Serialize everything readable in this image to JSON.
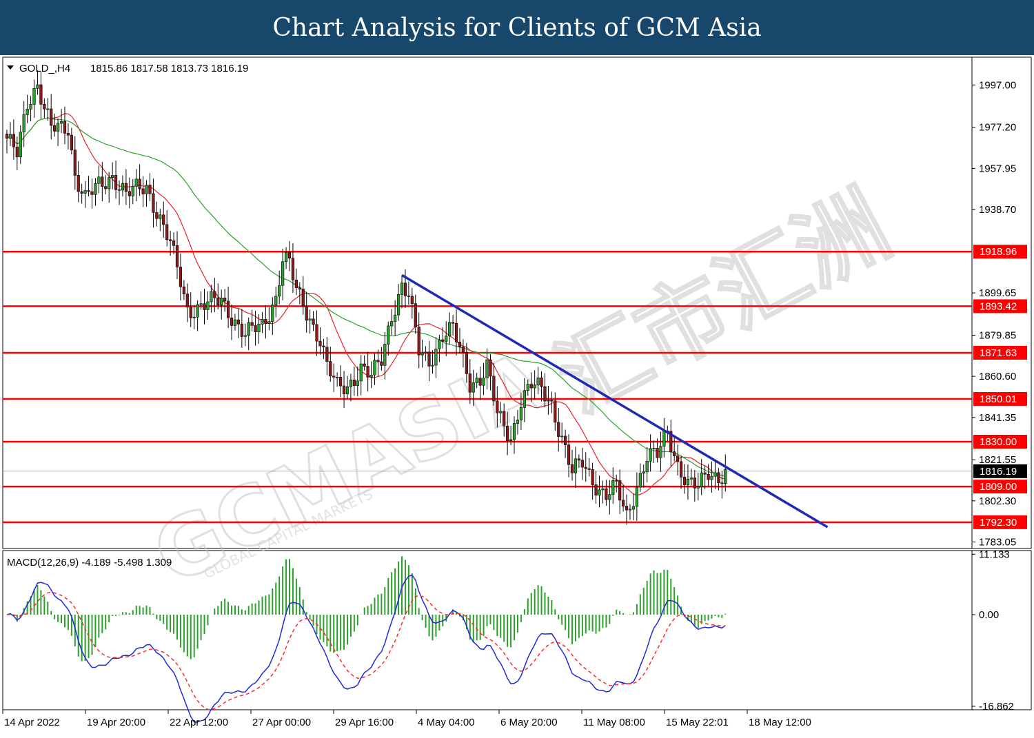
{
  "banner": {
    "title": "Chart Analysis for Clients of GCM Asia"
  },
  "header": {
    "symbol": "GOLD_,H4",
    "ohlc": "1815.86 1817.58 1813.73 1816.19"
  },
  "macd_header": {
    "label": "MACD(12,26,9) -4.189 -5.498 1.309"
  },
  "watermark": {
    "brand": "GCMASIA",
    "tagline": "GLOBAL CAPITAL MARKETS",
    "chinese": "汇市汇洲"
  },
  "chart_data": [
    {
      "type": "candlestick",
      "symbol": "GOLD_",
      "timeframe": "H4",
      "ylim": [
        1780,
        2010
      ],
      "y_ticks": [
        "1997.00",
        "1977.20",
        "1957.95",
        "1938.70",
        "1918.96",
        "1899.65",
        "1893.42",
        "1879.85",
        "1871.63",
        "1860.60",
        "1850.01",
        "1841.35",
        "1830.00",
        "1821.55",
        "1816.19",
        "1809.00",
        "1802.30",
        "1792.30",
        "1783.05"
      ],
      "x_labels": [
        "14 Apr 2022",
        "19 Apr 20:00",
        "22 Apr 12:00",
        "27 Apr 00:00",
        "29 Apr 16:00",
        "4 May 04:00",
        "6 May 20:00",
        "11 May 08:00",
        "15 May 22:01",
        "18 May 12:00"
      ],
      "current_price": 1816.19,
      "horizontal_levels": [
        1918.96,
        1893.42,
        1871.63,
        1850.01,
        1830.0,
        1809.0,
        1792.3
      ],
      "trendline": {
        "start_index": 116,
        "start_value": 1908,
        "end_index": 241,
        "end_value": 1790
      },
      "ma_fast_color": "#e8202a",
      "ma_slow_color": "#2ca02c",
      "candle_up_color": "#2ca02c",
      "candle_down_color": "#8b1a1a",
      "level_color": "#ff0000",
      "trend_color": "#1f2ab4",
      "close_path": [
        [
          0,
          1970
        ],
        [
          3,
          1965
        ],
        [
          6,
          1990
        ],
        [
          9,
          1997
        ],
        [
          11,
          1985
        ],
        [
          13,
          1976
        ],
        [
          18,
          1978
        ],
        [
          20,
          1955
        ],
        [
          23,
          1943
        ],
        [
          27,
          1950
        ],
        [
          31,
          1955
        ],
        [
          35,
          1945
        ],
        [
          38,
          1948
        ],
        [
          41,
          1950
        ],
        [
          44,
          1938
        ],
        [
          48,
          1922
        ],
        [
          51,
          1905
        ],
        [
          53,
          1892
        ],
        [
          58,
          1894
        ],
        [
          63,
          1896
        ],
        [
          67,
          1887
        ],
        [
          70,
          1880
        ],
        [
          75,
          1884
        ],
        [
          79,
          1898
        ],
        [
          81,
          1916
        ],
        [
          83,
          1913
        ],
        [
          85,
          1900
        ],
        [
          89,
          1888
        ],
        [
          92,
          1878
        ],
        [
          94,
          1865
        ],
        [
          97,
          1855
        ],
        [
          100,
          1856
        ],
        [
          104,
          1865
        ],
        [
          107,
          1860
        ],
        [
          110,
          1868
        ],
        [
          113,
          1890
        ],
        [
          116,
          1903
        ],
        [
          118,
          1898
        ],
        [
          121,
          1872
        ],
        [
          124,
          1868
        ],
        [
          128,
          1880
        ],
        [
          131,
          1882
        ],
        [
          133,
          1873
        ],
        [
          136,
          1858
        ],
        [
          139,
          1860
        ],
        [
          141,
          1865
        ],
        [
          144,
          1842
        ],
        [
          148,
          1832
        ],
        [
          151,
          1850
        ],
        [
          154,
          1856
        ],
        [
          157,
          1854
        ],
        [
          160,
          1848
        ],
        [
          163,
          1832
        ],
        [
          166,
          1815
        ],
        [
          169,
          1820
        ],
        [
          171,
          1815
        ],
        [
          174,
          1808
        ],
        [
          176,
          1805
        ],
        [
          179,
          1808
        ],
        [
          182,
          1795
        ],
        [
          185,
          1810
        ],
        [
          188,
          1823
        ],
        [
          191,
          1823
        ],
        [
          194,
          1835
        ],
        [
          197,
          1820
        ],
        [
          200,
          1810
        ],
        [
          203,
          1808
        ],
        [
          206,
          1816
        ],
        [
          209,
          1814
        ],
        [
          211,
          1816
        ]
      ]
    },
    {
      "type": "macd",
      "params": "12,26,9",
      "macd": -4.189,
      "signal": -5.498,
      "histogram": 1.309,
      "ylim": [
        -17.5,
        11.8
      ],
      "y_ticks": [
        "11.133",
        "0.00",
        "-16.862"
      ],
      "macd_color": "#1f2ad4",
      "signal_color": "#ff2a2a",
      "hist_color": "#2ca02c"
    }
  ]
}
